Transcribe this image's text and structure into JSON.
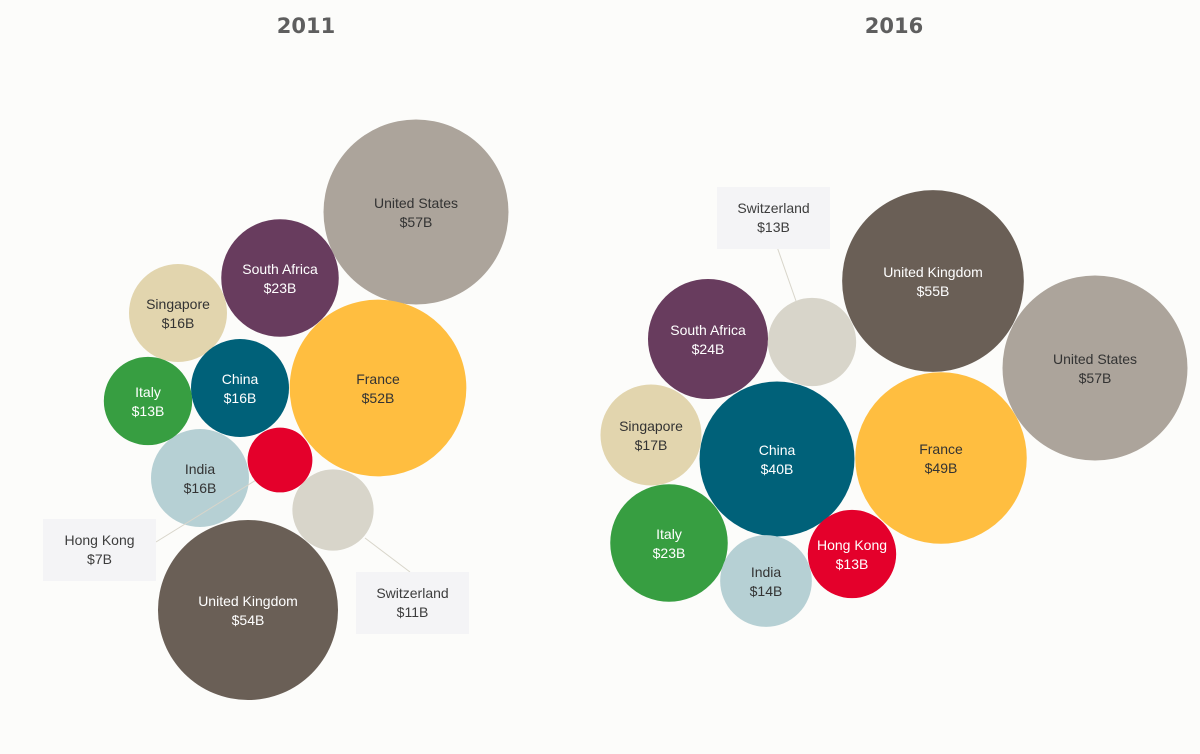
{
  "chart_data": [
    {
      "type": "bubble",
      "title": "2011",
      "series": [
        {
          "name": "United States",
          "label": "$57B",
          "value": 57,
          "color": "#aca49b"
        },
        {
          "name": "United Kingdom",
          "label": "$54B",
          "value": 54,
          "color": "#6a5f56"
        },
        {
          "name": "France",
          "label": "$52B",
          "value": 52,
          "color": "#ffbe40"
        },
        {
          "name": "South Africa",
          "label": "$23B",
          "value": 23,
          "color": "#683c5e"
        },
        {
          "name": "Singapore",
          "label": "$16B",
          "value": 16,
          "color": "#e2d5ae"
        },
        {
          "name": "China",
          "label": "$16B",
          "value": 16,
          "color": "#006179"
        },
        {
          "name": "India",
          "label": "$16B",
          "value": 16,
          "color": "#b6d0d4"
        },
        {
          "name": "Italy",
          "label": "$13B",
          "value": 13,
          "color": "#379e41"
        },
        {
          "name": "Switzerland",
          "label": "$11B",
          "value": 11,
          "color": "#d8d5ca"
        },
        {
          "name": "Hong Kong",
          "label": "$7B",
          "value": 7,
          "color": "#e4002b"
        }
      ]
    },
    {
      "type": "bubble",
      "title": "2016",
      "series": [
        {
          "name": "United States",
          "label": "$57B",
          "value": 57,
          "color": "#aca49b"
        },
        {
          "name": "United Kingdom",
          "label": "$55B",
          "value": 55,
          "color": "#6a5f56"
        },
        {
          "name": "France",
          "label": "$49B",
          "value": 49,
          "color": "#ffbe40"
        },
        {
          "name": "China",
          "label": "$40B",
          "value": 40,
          "color": "#006179"
        },
        {
          "name": "South Africa",
          "label": "$24B",
          "value": 24,
          "color": "#683c5e"
        },
        {
          "name": "Italy",
          "label": "$23B",
          "value": 23,
          "color": "#379e41"
        },
        {
          "name": "Singapore",
          "label": "$17B",
          "value": 17,
          "color": "#e2d5ae"
        },
        {
          "name": "India",
          "label": "$14B",
          "value": 14,
          "color": "#b6d0d4"
        },
        {
          "name": "Switzerland",
          "label": "$13B",
          "value": 13,
          "color": "#d8d5ca"
        },
        {
          "name": "Hong Kong",
          "label": "$13B",
          "value": 13,
          "color": "#e4002b"
        }
      ]
    }
  ]
}
